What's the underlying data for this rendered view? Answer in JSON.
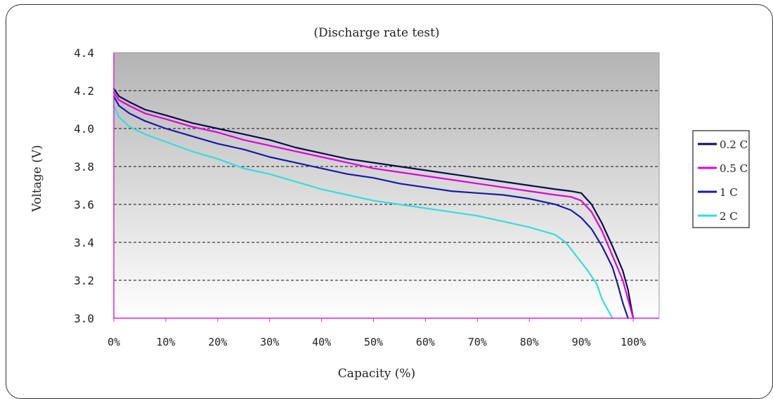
{
  "chart_data": {
    "type": "line",
    "title": "(Discharge rate test)",
    "xlabel": "Capacity (%)",
    "ylabel": "Voltage (V)",
    "xlim": [
      0,
      105
    ],
    "ylim": [
      3.0,
      4.4
    ],
    "x_ticks": [
      "0%",
      "10%",
      "20%",
      "30%",
      "40%",
      "50%",
      "60%",
      "70%",
      "80%",
      "90%",
      "100%"
    ],
    "y_ticks": [
      "3.0",
      "3.2",
      "3.4",
      "3.6",
      "3.8",
      "4.0",
      "4.2",
      "4.4"
    ],
    "grid": "horizontal dashed",
    "legend_position": "right",
    "series": [
      {
        "name": "0.2 C",
        "color": "#0d0d4d",
        "points": [
          [
            0,
            4.21
          ],
          [
            1,
            4.17
          ],
          [
            3,
            4.14
          ],
          [
            6,
            4.1
          ],
          [
            10,
            4.07
          ],
          [
            15,
            4.03
          ],
          [
            20,
            4.0
          ],
          [
            25,
            3.97
          ],
          [
            30,
            3.94
          ],
          [
            35,
            3.9
          ],
          [
            40,
            3.87
          ],
          [
            45,
            3.84
          ],
          [
            50,
            3.82
          ],
          [
            55,
            3.8
          ],
          [
            60,
            3.78
          ],
          [
            65,
            3.76
          ],
          [
            70,
            3.74
          ],
          [
            75,
            3.72
          ],
          [
            80,
            3.7
          ],
          [
            85,
            3.68
          ],
          [
            88,
            3.67
          ],
          [
            90,
            3.66
          ],
          [
            92,
            3.6
          ],
          [
            94,
            3.5
          ],
          [
            96,
            3.38
          ],
          [
            98,
            3.25
          ],
          [
            99,
            3.15
          ],
          [
            100,
            3.0
          ]
        ]
      },
      {
        "name": "0.5 C",
        "color": "#e000e0",
        "points": [
          [
            0,
            4.19
          ],
          [
            1,
            4.15
          ],
          [
            3,
            4.12
          ],
          [
            6,
            4.08
          ],
          [
            10,
            4.05
          ],
          [
            15,
            4.01
          ],
          [
            20,
            3.98
          ],
          [
            25,
            3.94
          ],
          [
            30,
            3.91
          ],
          [
            35,
            3.88
          ],
          [
            40,
            3.85
          ],
          [
            45,
            3.82
          ],
          [
            50,
            3.79
          ],
          [
            55,
            3.77
          ],
          [
            60,
            3.75
          ],
          [
            65,
            3.73
          ],
          [
            70,
            3.71
          ],
          [
            75,
            3.69
          ],
          [
            80,
            3.67
          ],
          [
            85,
            3.65
          ],
          [
            88,
            3.64
          ],
          [
            90,
            3.62
          ],
          [
            92,
            3.56
          ],
          [
            94,
            3.46
          ],
          [
            96,
            3.33
          ],
          [
            98,
            3.2
          ],
          [
            99,
            3.1
          ],
          [
            100,
            3.0
          ]
        ]
      },
      {
        "name": "1 C",
        "color": "#1a1aaa",
        "points": [
          [
            0,
            4.17
          ],
          [
            1,
            4.12
          ],
          [
            3,
            4.08
          ],
          [
            6,
            4.04
          ],
          [
            10,
            4.0
          ],
          [
            15,
            3.96
          ],
          [
            20,
            3.92
          ],
          [
            25,
            3.89
          ],
          [
            30,
            3.85
          ],
          [
            35,
            3.82
          ],
          [
            40,
            3.79
          ],
          [
            45,
            3.76
          ],
          [
            50,
            3.74
          ],
          [
            55,
            3.71
          ],
          [
            60,
            3.69
          ],
          [
            65,
            3.67
          ],
          [
            70,
            3.66
          ],
          [
            75,
            3.65
          ],
          [
            80,
            3.63
          ],
          [
            85,
            3.6
          ],
          [
            88,
            3.57
          ],
          [
            90,
            3.53
          ],
          [
            92,
            3.47
          ],
          [
            94,
            3.38
          ],
          [
            96,
            3.27
          ],
          [
            97,
            3.18
          ],
          [
            98,
            3.08
          ],
          [
            99,
            3.0
          ]
        ]
      },
      {
        "name": "2 C",
        "color": "#33dddd",
        "points": [
          [
            0,
            4.12
          ],
          [
            1,
            4.06
          ],
          [
            3,
            4.01
          ],
          [
            6,
            3.97
          ],
          [
            10,
            3.93
          ],
          [
            15,
            3.88
          ],
          [
            20,
            3.84
          ],
          [
            25,
            3.79
          ],
          [
            30,
            3.76
          ],
          [
            35,
            3.72
          ],
          [
            40,
            3.68
          ],
          [
            45,
            3.65
          ],
          [
            50,
            3.62
          ],
          [
            55,
            3.6
          ],
          [
            60,
            3.58
          ],
          [
            65,
            3.56
          ],
          [
            70,
            3.54
          ],
          [
            75,
            3.51
          ],
          [
            80,
            3.48
          ],
          [
            85,
            3.44
          ],
          [
            87,
            3.4
          ],
          [
            89,
            3.33
          ],
          [
            91,
            3.26
          ],
          [
            93,
            3.18
          ],
          [
            94,
            3.1
          ],
          [
            95,
            3.05
          ],
          [
            96,
            3.0
          ]
        ]
      }
    ]
  }
}
